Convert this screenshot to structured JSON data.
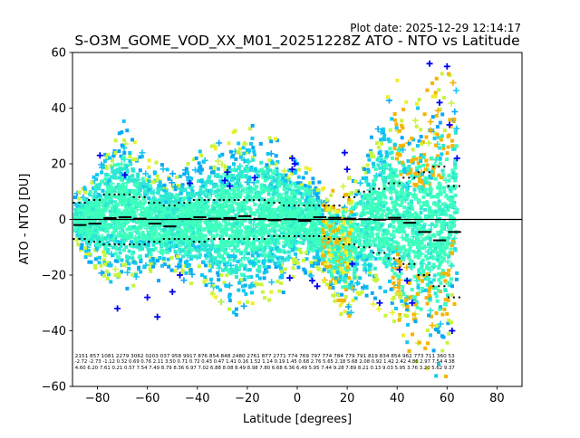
{
  "plot_date": "Plot date: 2025-12-29 12:14:17",
  "chart_data": {
    "type": "scatter",
    "title": "S-O3M_GOME_VOD_XX_M01_20251228Z ATO - NTO vs Latitude",
    "xlabel": "Latitude [degrees]",
    "ylabel": "ATO - NTO [DU]",
    "xlim": [
      -90,
      90
    ],
    "ylim": [
      -60,
      60
    ],
    "x_ticks": [
      -80,
      -60,
      -40,
      -20,
      0,
      20,
      40,
      60,
      80
    ],
    "y_ticks": [
      -60,
      -40,
      -20,
      0,
      20,
      40,
      60
    ],
    "grid": false,
    "reference_line_y": 0,
    "colors": {
      "dense_core": "#3dffbe",
      "mid_teal": "#2ee8d2",
      "cyan": "#14c8f0",
      "sky_blue": "#0aa8f5",
      "yellow_green": "#c8f53c",
      "yellow": "#eef02a",
      "orange": "#f5b400",
      "blue": "#0000f0",
      "reference_line": "#000000"
    },
    "envelope": {
      "lat": [
        -89,
        -85,
        -80,
        -75,
        -70,
        -65,
        -60,
        -55,
        -50,
        -45,
        -40,
        -35,
        -30,
        -25,
        -20,
        -15,
        -10,
        -5,
        0,
        5,
        10,
        15,
        20,
        25,
        30,
        35,
        40,
        45,
        50,
        55,
        60,
        63
      ],
      "upper": [
        8,
        14,
        20,
        28,
        36,
        30,
        22,
        20,
        18,
        20,
        24,
        26,
        28,
        33,
        37,
        34,
        30,
        26,
        20,
        18,
        12,
        10,
        14,
        20,
        30,
        42,
        50,
        40,
        44,
        50,
        54,
        48
      ],
      "lower": [
        -8,
        -14,
        -18,
        -22,
        -28,
        -26,
        -22,
        -22,
        -20,
        -22,
        -24,
        -26,
        -30,
        -34,
        -36,
        -32,
        -28,
        -26,
        -18,
        -20,
        -22,
        -32,
        -36,
        -28,
        -30,
        -34,
        -42,
        -50,
        -52,
        -56,
        -58,
        -30
      ]
    },
    "median": {
      "lat": [
        -87,
        -81,
        -75,
        -69,
        -63,
        -57,
        -51,
        -45,
        -39,
        -33,
        -27,
        -21,
        -15,
        -9,
        -3,
        3,
        9,
        15,
        21,
        27,
        33,
        39,
        45,
        51,
        57,
        63
      ],
      "y": [
        -2,
        -1.5,
        0.5,
        0.8,
        0.3,
        -1.5,
        -2.5,
        0.2,
        0.8,
        0.3,
        0.5,
        1.2,
        0.2,
        -0.3,
        0.1,
        -0.5,
        0.8,
        0.6,
        0.3,
        0.1,
        -0.1,
        0.6,
        -1.2,
        -4.5,
        -7.5,
        -4.5
      ]
    },
    "upper_sigma": {
      "lat": [
        -87,
        -81,
        -75,
        -69,
        -63,
        -57,
        -51,
        -45,
        -39,
        -33,
        -27,
        -21,
        -15,
        -9,
        -3,
        3,
        9,
        15,
        21,
        27,
        33,
        39,
        45,
        51,
        57,
        63
      ],
      "y": [
        6,
        7,
        9,
        9,
        8,
        6,
        5,
        6,
        7,
        7,
        7,
        7,
        7,
        6,
        5,
        5,
        5,
        5,
        8,
        10,
        11,
        13,
        15,
        17,
        19,
        12
      ]
    },
    "lower_sigma": {
      "lat": [
        -87,
        -81,
        -75,
        -69,
        -63,
        -57,
        -51,
        -45,
        -39,
        -33,
        -27,
        -21,
        -15,
        -9,
        -3,
        3,
        9,
        15,
        21,
        27,
        33,
        39,
        45,
        51,
        57,
        63
      ],
      "y": [
        -7,
        -8,
        -9,
        -9,
        -9,
        -8,
        -7,
        -7,
        -8,
        -7,
        -7,
        -7,
        -7,
        -6,
        -6,
        -6,
        -6,
        -7,
        -9,
        -10,
        -12,
        -14,
        -16,
        -20,
        -24,
        -28
      ]
    },
    "bin_stats_rows": [
      "2151 857 1081 2279 3062 0203 037 958 9917 876 854 848 2480 2761 877 2771 774 769 797 774 784 779 791 819 834 854 962 773 711 360 53",
      "-2.72 -2.73 -1.12 0.32 0.69 0.76 2.11 3.50 0.71 0.72 0.43 0.47 1.41 0.16 1.52 1.14 0.19 1.45 0.68 2.76 5.65 2.18 5.68 2.08 0.92 1.42 2.42 4.86 2.97 7.54 4.38",
      "4.60 6.20 7.61 0.21 0.57 7.54 7.49 8.79 8.36 6.97 7.02 6.88 8.08 8.49 8.98 7.80 6.68 6.36 6.49 5.95 7.44 9.28 7.89 8.21 0.13 9.03 5.95 3.76 3.20 5.62 9.37"
    ],
    "blue_points": [
      [
        -79,
        23
      ],
      [
        -72,
        -32
      ],
      [
        -69,
        16
      ],
      [
        -60,
        -28
      ],
      [
        -56,
        -35
      ],
      [
        -50,
        -26
      ],
      [
        -47,
        -20
      ],
      [
        -43,
        13
      ],
      [
        -29,
        14
      ],
      [
        -28,
        17
      ],
      [
        -27,
        12
      ],
      [
        -17,
        15
      ],
      [
        -2,
        22
      ],
      [
        -1,
        20
      ],
      [
        -2,
        18
      ],
      [
        -3,
        -21
      ],
      [
        6,
        -22
      ],
      [
        8,
        -24
      ],
      [
        19,
        24
      ],
      [
        20,
        18
      ],
      [
        22,
        -16
      ],
      [
        33,
        -30
      ],
      [
        41,
        -18
      ],
      [
        44,
        -22
      ],
      [
        46,
        -30
      ],
      [
        53,
        56
      ],
      [
        57,
        42
      ],
      [
        60,
        55
      ],
      [
        61,
        34
      ],
      [
        62,
        -40
      ],
      [
        64,
        22
      ]
    ]
  }
}
